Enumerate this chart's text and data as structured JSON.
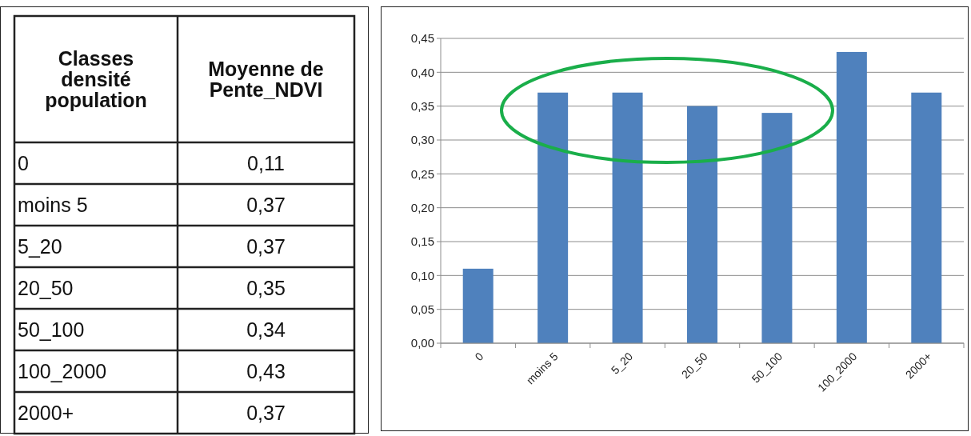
{
  "chart_data": [
    {
      "type": "other",
      "annotations": [
        "Classes densité population",
        "Moyenne de Pente_NDVI",
        "0",
        "0,11",
        "moins 5",
        "0,37",
        "5_20",
        "0,37",
        "20_50",
        "0,35",
        "50_100",
        "0,34",
        "100_2000",
        "0,43",
        "2000+",
        "0,37"
      ]
    },
    {
      "type": "bar",
      "categories": [
        "0",
        "moins 5",
        "5_20",
        "20_50",
        "50_100",
        "100_2000",
        "2000+"
      ],
      "values": [
        0.11,
        0.37,
        0.37,
        0.35,
        0.34,
        0.43,
        0.37
      ],
      "color": "#4f81bd",
      "ylim": [
        0,
        0.45
      ],
      "yticks": [
        {
          "value": 0,
          "label": "0,00"
        },
        {
          "value": 0.05,
          "label": "0,05"
        },
        {
          "value": 0.1,
          "label": "0,10"
        },
        {
          "value": 0.15,
          "label": "0,15"
        },
        {
          "value": 0.2,
          "label": "0,20"
        },
        {
          "value": 0.25,
          "label": "0,25"
        },
        {
          "value": 0.3,
          "label": "0,30"
        },
        {
          "value": 0.35,
          "label": "0,35"
        },
        {
          "value": 0.4,
          "label": "0,40"
        },
        {
          "value": 0.45,
          "label": "0,45"
        }
      ],
      "grid": "y"
    }
  ]
}
